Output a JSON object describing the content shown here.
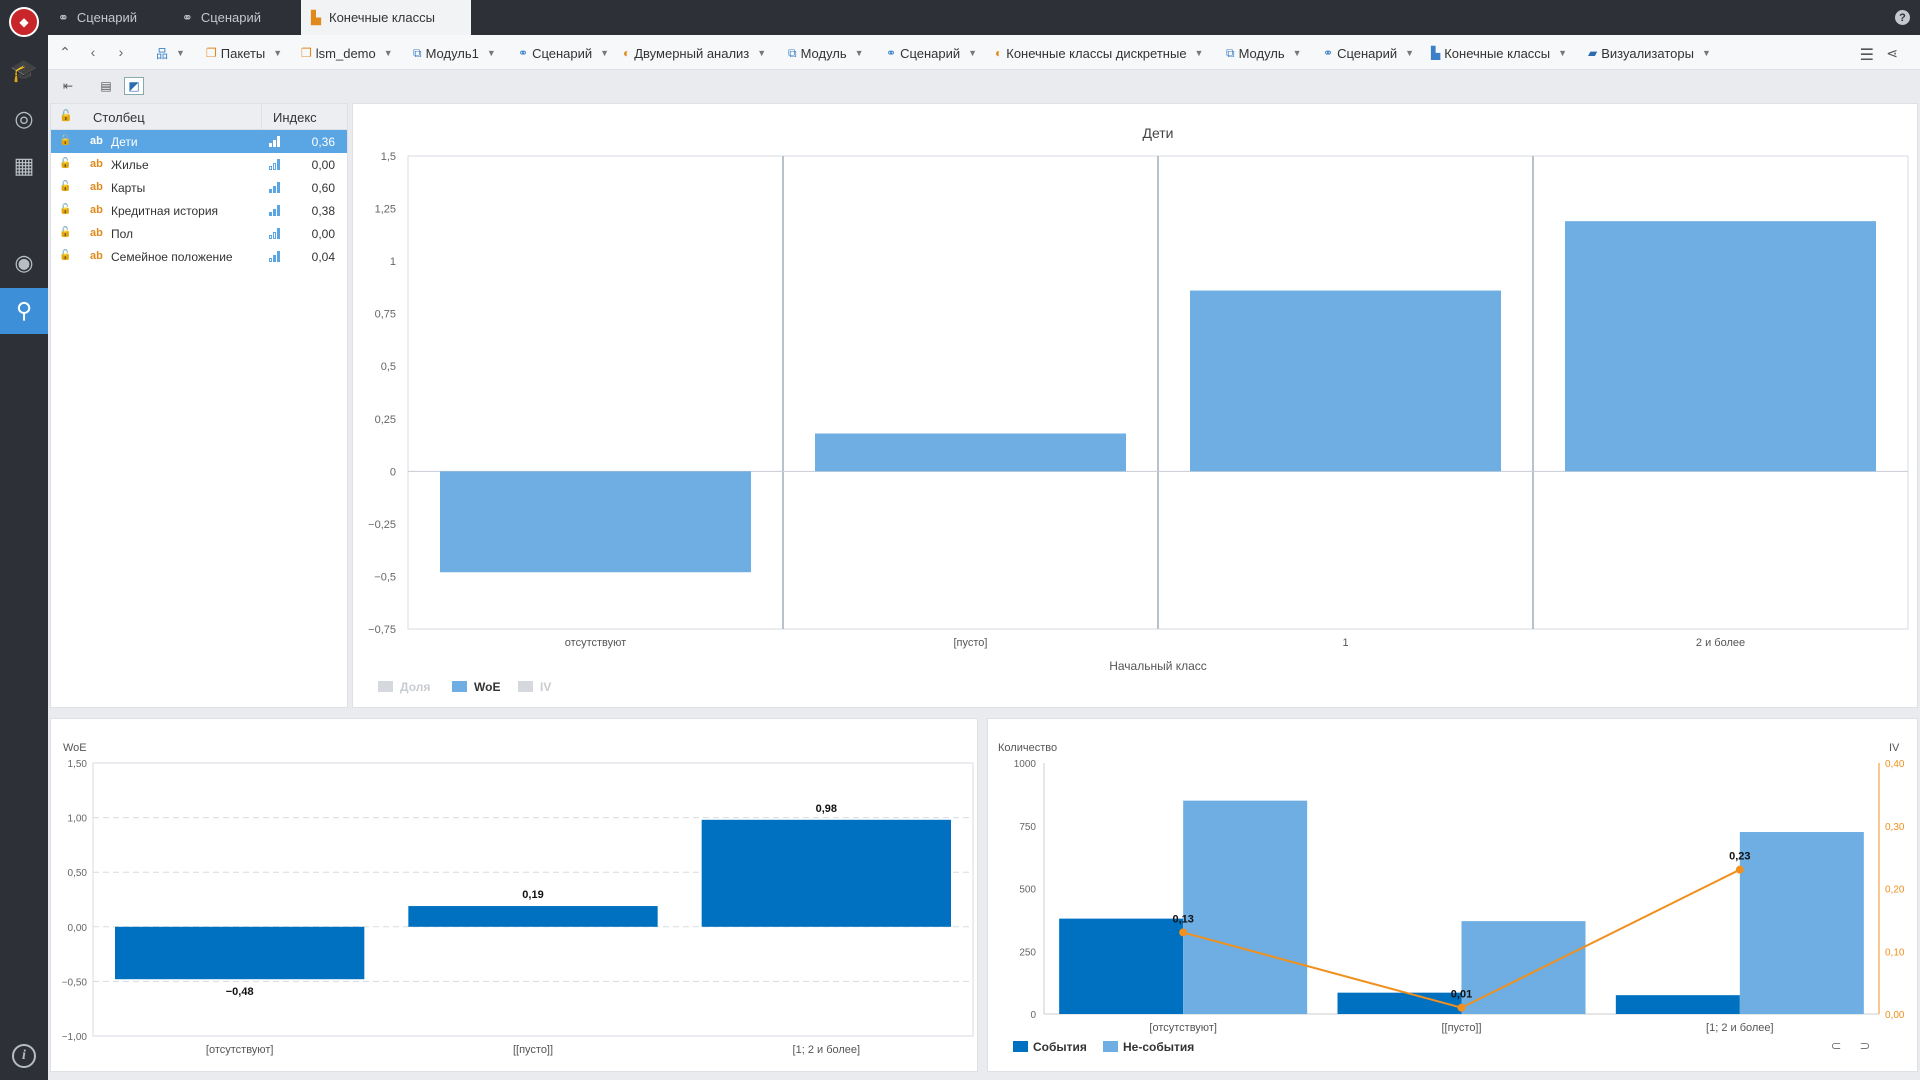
{
  "tabs": [
    {
      "label": "Сценарий",
      "active": false
    },
    {
      "label": "Сценарий",
      "active": false
    },
    {
      "label": "Конечные классы",
      "active": true
    }
  ],
  "help_label": "?",
  "breadcrumb": [
    {
      "label": "",
      "icon": "tree-icon"
    },
    {
      "label": "Пакеты",
      "icon": "package-icon"
    },
    {
      "label": "lsm_demo",
      "icon": "package-icon"
    },
    {
      "label": "Модуль1",
      "icon": "module-icon"
    },
    {
      "label": "Сценарий",
      "icon": "scenario-icon"
    },
    {
      "label": "Двумерный анализ",
      "icon": "analysis-icon"
    },
    {
      "label": "Модуль",
      "icon": "module-icon"
    },
    {
      "label": "Сценарий",
      "icon": "scenario-icon"
    },
    {
      "label": "Конечные классы дискретные",
      "icon": "analysis-icon"
    },
    {
      "label": "Модуль",
      "icon": "module-icon"
    },
    {
      "label": "Сценарий",
      "icon": "scenario-icon"
    },
    {
      "label": "Конечные классы",
      "icon": "classes-icon"
    },
    {
      "label": "Визуализаторы",
      "icon": "folder-icon"
    }
  ],
  "columns_table": {
    "headers": {
      "column": "Столбец",
      "index": "Индекс"
    },
    "rows": [
      {
        "type": "ab",
        "name": "Дети",
        "index": "0,36",
        "bars": [
          1,
          1,
          1
        ],
        "selected": true
      },
      {
        "type": "ab",
        "name": "Жилье",
        "index": "0,00",
        "bars": [
          0,
          0,
          1
        ],
        "selected": false
      },
      {
        "type": "ab",
        "name": "Карты",
        "index": "0,60",
        "bars": [
          1,
          1,
          1
        ],
        "selected": false
      },
      {
        "type": "ab",
        "name": "Кредитная история",
        "index": "0,38",
        "bars": [
          1,
          1,
          1
        ],
        "selected": false
      },
      {
        "type": "ab",
        "name": "Пол",
        "index": "0,00",
        "bars": [
          0,
          0,
          1
        ],
        "selected": false
      },
      {
        "type": "ab",
        "name": "Семейное положение",
        "index": "0,04",
        "bars": [
          0,
          1,
          1
        ],
        "selected": false
      }
    ]
  },
  "chart_data": [
    {
      "type": "bar",
      "title": "Дети",
      "xlabel": "Начальный класс",
      "categories": [
        "отсутствуют",
        "[пусто]",
        "1",
        "2 и более"
      ],
      "values": [
        -0.48,
        0.18,
        0.86,
        1.19
      ],
      "ylim": [
        -0.75,
        1.5
      ],
      "yticks": [
        "1,5",
        "1,25",
        "1",
        "0,75",
        "0,5",
        "0,25",
        "0",
        "−0,25",
        "−0,5",
        "−0,75"
      ],
      "legend": [
        {
          "label": "Доля",
          "active": false
        },
        {
          "label": "WoE",
          "active": true
        },
        {
          "label": "IV",
          "active": false
        }
      ],
      "colors": {
        "bar": "#6eaee2"
      }
    },
    {
      "type": "bar",
      "ylabel": "WoE",
      "categories": [
        "[отсутствуют]",
        "[[пусто]]",
        "[1; 2 и более]"
      ],
      "values": [
        -0.48,
        0.19,
        0.98
      ],
      "value_labels": [
        "−0,48",
        "0,19",
        "0,98"
      ],
      "ylim": [
        -1.0,
        1.5
      ],
      "yticks": [
        "1,50",
        "1,00",
        "0,50",
        "0,00",
        "−0,50",
        "−1,00"
      ],
      "colors": {
        "bar": "#0070c0"
      }
    },
    {
      "type": "bar",
      "ylabel": "Количество",
      "y2label": "IV",
      "categories": [
        "[отсутствуют]",
        "[[пусто]]",
        "[1; 2 и более]"
      ],
      "series": [
        {
          "name": "События",
          "values": [
            380,
            85,
            75
          ],
          "color": "#0070c0"
        },
        {
          "name": "Не-события",
          "values": [
            850,
            370,
            725
          ],
          "color": "#6eaee2"
        }
      ],
      "line": {
        "name": "IV",
        "values": [
          0.13,
          0.01,
          0.23
        ],
        "labels": [
          "0,13",
          "0,01",
          "0,23"
        ],
        "color": "#f0901e"
      },
      "ylim": [
        0,
        1000
      ],
      "yticks": [
        "1000",
        "750",
        "500",
        "250",
        "0"
      ],
      "y2lim": [
        0,
        0.4
      ],
      "y2ticks": [
        "0,40",
        "0,30",
        "0,20",
        "0,10",
        "0,00"
      ]
    }
  ]
}
